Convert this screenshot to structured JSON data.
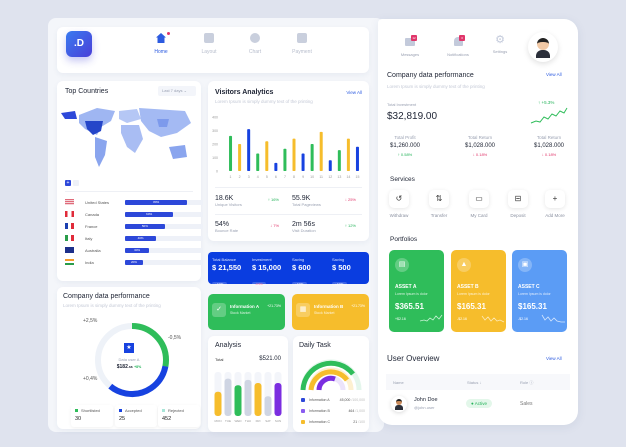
{
  "logo": ".D",
  "nav": [
    {
      "label": "Home",
      "active": true
    },
    {
      "label": "Layout"
    },
    {
      "label": "Chart"
    },
    {
      "label": "Payment"
    }
  ],
  "top_countries": {
    "title": "Top Countries",
    "range": "Last 7 days",
    "countries": [
      {
        "name": "United States",
        "pct": "80%",
        "fill": 0.8
      },
      {
        "name": "Canada",
        "pct": "60%",
        "fill": 0.62
      },
      {
        "name": "France",
        "pct": "50%",
        "fill": 0.51
      },
      {
        "name": "Italy",
        "pct": "40%",
        "fill": 0.4
      },
      {
        "name": "Australia",
        "pct": "30%",
        "fill": 0.31
      },
      {
        "name": "India",
        "pct": "20%",
        "fill": 0.23
      }
    ]
  },
  "visitors": {
    "title": "Visitors Analytics",
    "subtitle": "Lorem Ipsum is simply dummy text of the printing",
    "view_all": "View All",
    "stats": [
      {
        "value": "18.6K",
        "label": "Unique Visitors",
        "change": "16%",
        "dir": "up"
      },
      {
        "value": "55.9K",
        "label": "Total Pageviews",
        "change": "25%",
        "dir": "down"
      },
      {
        "value": "54%",
        "label": "Bounce Rate",
        "change": "7%",
        "dir": "down"
      },
      {
        "value": "2m 56s",
        "label": "Visit Duration",
        "change": "12%",
        "dir": "up"
      }
    ]
  },
  "chart_data": [
    {
      "type": "bar",
      "categories": [
        "1",
        "2",
        "3",
        "4",
        "5",
        "6",
        "7",
        "8",
        "9",
        "10",
        "11",
        "12",
        "13",
        "14",
        "15"
      ],
      "values": [
        260,
        200,
        310,
        130,
        220,
        60,
        165,
        240,
        130,
        200,
        290,
        80,
        155,
        240,
        180
      ],
      "colors": [
        "#2fbd5a",
        "#f6bd2c",
        "#1742e0"
      ],
      "yticks": [
        0,
        100,
        200,
        300,
        400
      ],
      "ylim": [
        0,
        400
      ],
      "grid": false
    },
    {
      "type": "bar",
      "title": "Analysis",
      "categories": [
        "MON",
        "TUE",
        "WED",
        "THU",
        "FRI",
        "SAT",
        "SUN"
      ],
      "values": [
        0.55,
        0.85,
        0.7,
        0.82,
        0.75,
        0.45,
        0.75
      ],
      "ylim": [
        0,
        1
      ],
      "colors": [
        "#f6bd2c",
        "#cfd5e3",
        "#2fbd5a",
        "#cfd5e3",
        "#f6bd2c",
        "#cfd5e3",
        "#7b2ee0"
      ]
    }
  ],
  "finance": [
    {
      "label": "Total Balance",
      "value": "$ 21,550",
      "badge": "+3.5%"
    },
    {
      "label": "Investment",
      "value": "$ 15,000",
      "badge": "-0.5%"
    },
    {
      "label": "Saving",
      "value": "$ 600",
      "badge": "+3.5%"
    },
    {
      "label": "Saving",
      "value": "$ 500",
      "badge": "+3.5%"
    }
  ],
  "info": [
    {
      "title": "Information A",
      "sub": "Stock Market",
      "change": "+21.73%",
      "color": "#2fbd5a"
    },
    {
      "title": "Information B",
      "sub": "Stock Market",
      "change": "+21.73%",
      "color": "#f6bd2c"
    }
  ],
  "company_left": {
    "title": "Company data performance",
    "subtitle": "Lorem Ipsum is simply dummy text of the printing",
    "labels": [
      "+2,5%",
      "-0,5%",
      "+0,4%"
    ],
    "center_label": "Data user A",
    "center_value": "$182",
    ".": "",
    "center_cents": ".ss",
    "center_change": "+8%",
    "green_share": 0.28,
    "blue_share": 0.33,
    "legend": [
      {
        "label": "Shortlisted",
        "value": "30",
        "color": "#2fbd5a"
      },
      {
        "label": "Accepted",
        "value": "25",
        "color": "#1742e0"
      },
      {
        "label": "Rejected",
        "value": "452",
        "color": "#a8e6d8"
      }
    ]
  },
  "analysis": {
    "title": "Analysis",
    "total_label": "Total",
    "total": "$521.00"
  },
  "daily_task": {
    "title": "Daily Task",
    "items": [
      {
        "label": "Information A",
        "value": "45,000",
        "max": "/100,000",
        "color": "#2d48d9",
        "fill": 0.9
      },
      {
        "label": "Information B",
        "value": "464",
        "max": "/1,000",
        "color": "#8a5cf0",
        "fill": 0.55
      },
      {
        "label": "Information C",
        "value": "21",
        "max": "/100",
        "color": "#f6bd2c",
        "fill": 0.75
      }
    ]
  },
  "top_right": {
    "messages": "Messages",
    "messages_badge": "12",
    "notifications": "Notifications",
    "notifications_badge": "3",
    "settings": "Settings"
  },
  "company_right": {
    "title": "Company data performance",
    "subtitle": "Lorem Ipsum is simply dummy text of the printing",
    "view_all": "View All",
    "investment_label": "Total Investment",
    "investment": "$32,819.00",
    "investment_change": "+5.3%",
    "kpis": [
      {
        "label": "Total Profit",
        "value": "$1,260.000",
        "change": "0.58%",
        "dir": "up"
      },
      {
        "label": "Total Return",
        "value": "$1,028.000",
        "change": "0.18%",
        "dir": "down"
      },
      {
        "label": "Total Return",
        "value": "$1,028.000",
        "change": "0.18%",
        "dir": "down"
      }
    ]
  },
  "services": {
    "title": "Services",
    "items": [
      {
        "label": "Withdraw",
        "icon": "↺"
      },
      {
        "label": "Transfer",
        "icon": "⇅"
      },
      {
        "label": "My Card",
        "icon": "▭"
      },
      {
        "label": "Deposit",
        "icon": "⊟"
      },
      {
        "label": "Add More",
        "icon": "+"
      }
    ]
  },
  "portfolios": {
    "title": "Portfolios",
    "items": [
      {
        "name": "ASSET A",
        "desc": "Lorem Ipsum is dolor",
        "value": "$365.51",
        "change": "+$2.16",
        "color": "#2fbd5a"
      },
      {
        "name": "ASSET B",
        "desc": "Lorem Ipsum is dolor",
        "value": "$165.31",
        "change": "-$2.16",
        "color": "#f6bd2c"
      },
      {
        "name": "ASSET C",
        "desc": "Lorem Ipsum is dolor",
        "value": "$165.31",
        "change": "-$2.16",
        "color": "#5b9cf5"
      }
    ]
  },
  "user_overview": {
    "title": "User Overview",
    "view_all": "View All",
    "columns": [
      "Name",
      "Status",
      "Role"
    ],
    "rows": [
      {
        "name": "John Doe",
        "handle": "@john.user",
        "status": "Active",
        "role": "Sales"
      }
    ]
  }
}
